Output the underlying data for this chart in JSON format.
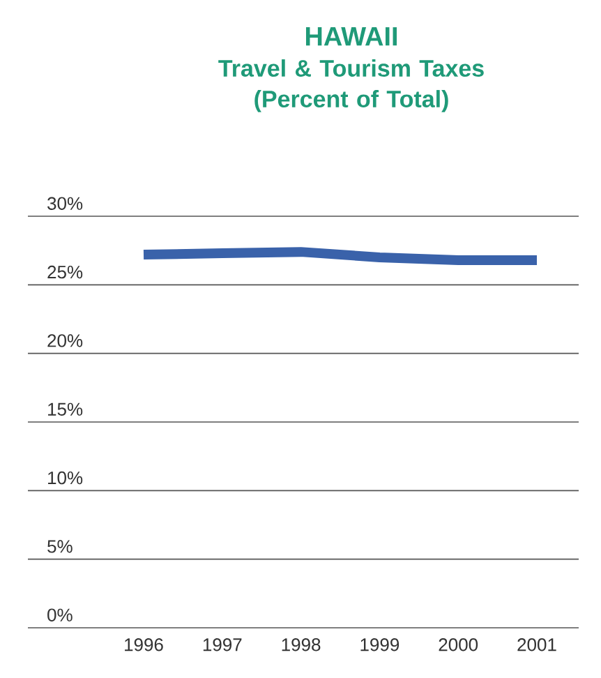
{
  "chart_data": {
    "type": "line",
    "title": "HAWAII",
    "subtitle": "Travel & Tourism Taxes (Percent of Total)",
    "categories": [
      "1996",
      "1997",
      "1998",
      "1999",
      "2000",
      "2001"
    ],
    "series": [
      {
        "color": "#3a62aa",
        "values": [
          27.2,
          27.3,
          27.4,
          27.0,
          26.8,
          26.8
        ]
      }
    ],
    "ylim": [
      0,
      30
    ],
    "yticks": [
      {
        "value": 0,
        "label": "0%"
      },
      {
        "value": 5,
        "label": "5%"
      },
      {
        "value": 10,
        "label": "10%"
      },
      {
        "value": 15,
        "label": "15%"
      },
      {
        "value": 20,
        "label": "20%"
      },
      {
        "value": 25,
        "label": "25%"
      },
      {
        "value": 30,
        "label": "30%"
      }
    ],
    "grid": "y",
    "marker": "none",
    "line_style": "solid"
  }
}
